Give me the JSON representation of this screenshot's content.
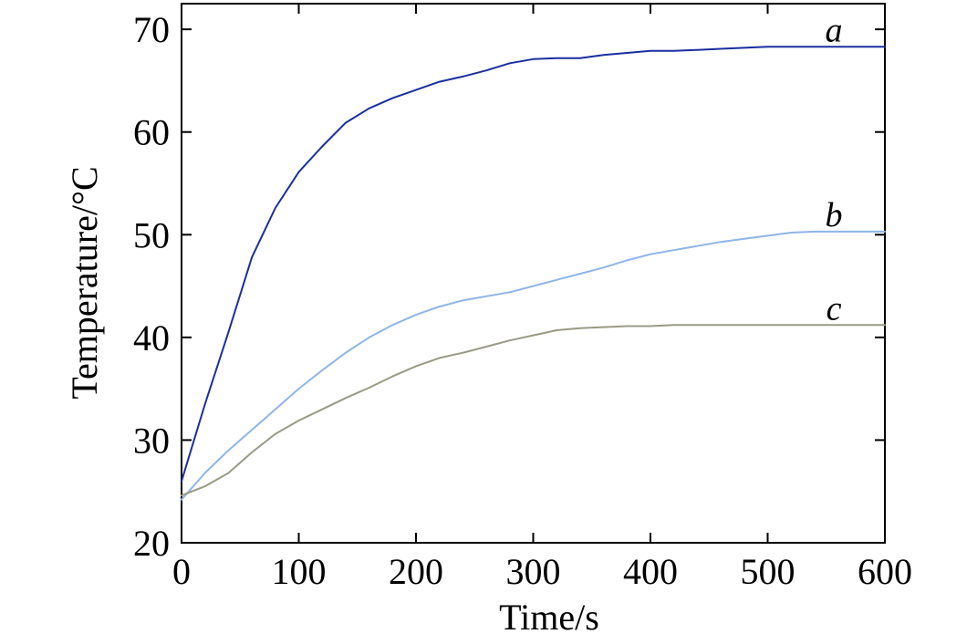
{
  "chart_data": {
    "type": "line",
    "title": "",
    "xlabel": "Time/s",
    "ylabel": "Temperature/°C",
    "xlim": [
      0,
      600
    ],
    "ylim": [
      20,
      72.5
    ],
    "xticks": [
      0,
      100,
      200,
      300,
      400,
      500,
      600
    ],
    "yticks": [
      20,
      30,
      40,
      50,
      60,
      70
    ],
    "grid": false,
    "series": [
      {
        "name": "a",
        "color": "#1a2ea0",
        "x": [
          0,
          20,
          40,
          60,
          80,
          100,
          120,
          140,
          160,
          180,
          200,
          220,
          240,
          260,
          280,
          300,
          320,
          340,
          360,
          380,
          400,
          420,
          440,
          460,
          480,
          500,
          520,
          540,
          560,
          580,
          600
        ],
        "y": [
          26.0,
          33.5,
          40.5,
          47.8,
          52.6,
          56.1,
          58.6,
          60.9,
          62.3,
          63.3,
          64.1,
          64.9,
          65.4,
          66.0,
          66.7,
          67.1,
          67.2,
          67.2,
          67.5,
          67.7,
          67.9,
          67.9,
          68.0,
          68.1,
          68.2,
          68.3,
          68.3,
          68.3,
          68.3,
          68.3,
          68.3
        ]
      },
      {
        "name": "b",
        "color": "#8fb4e8",
        "x": [
          0,
          20,
          40,
          60,
          80,
          100,
          120,
          140,
          160,
          180,
          200,
          220,
          240,
          260,
          280,
          300,
          320,
          340,
          360,
          380,
          400,
          420,
          440,
          460,
          480,
          500,
          520,
          540,
          560,
          580,
          600
        ],
        "y": [
          24.2,
          26.8,
          29.0,
          31.0,
          33.0,
          35.0,
          36.8,
          38.5,
          40.0,
          41.2,
          42.2,
          43.0,
          43.6,
          44.0,
          44.4,
          45.0,
          45.6,
          46.2,
          46.8,
          47.5,
          48.1,
          48.5,
          48.9,
          49.3,
          49.6,
          49.9,
          50.2,
          50.3,
          50.3,
          50.3,
          50.3
        ]
      },
      {
        "name": "c",
        "color": "#9a9a85",
        "x": [
          0,
          20,
          40,
          60,
          80,
          100,
          120,
          140,
          160,
          180,
          200,
          220,
          240,
          260,
          280,
          300,
          320,
          340,
          360,
          380,
          400,
          420,
          440,
          460,
          480,
          500,
          520,
          540,
          560,
          580,
          600
        ],
        "y": [
          24.6,
          25.5,
          26.8,
          28.8,
          30.6,
          31.9,
          33.0,
          34.1,
          35.1,
          36.2,
          37.2,
          38.0,
          38.5,
          39.1,
          39.7,
          40.2,
          40.7,
          40.9,
          41.0,
          41.1,
          41.1,
          41.2,
          41.2,
          41.2,
          41.2,
          41.2,
          41.2,
          41.2,
          41.2,
          41.2,
          41.2
        ]
      }
    ],
    "series_label_positions": [
      "a",
      "b",
      "c"
    ]
  }
}
